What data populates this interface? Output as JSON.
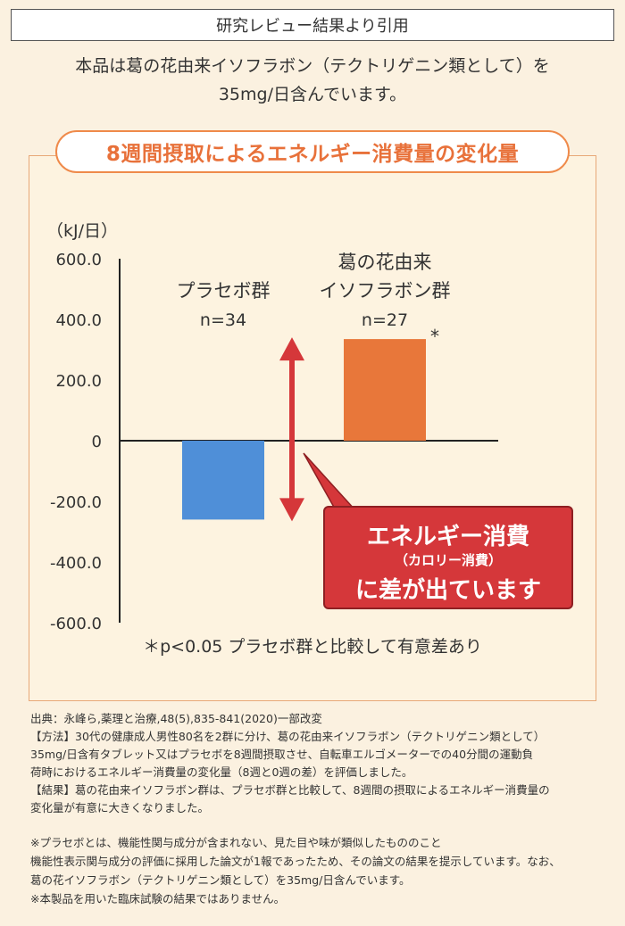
{
  "header": {
    "title": "研究レビュー結果より引用"
  },
  "intro": {
    "line1": "本品は葛の花由来イソフラボン（テクトリゲニン類として）を",
    "line2": "35mg/日含んでいます。"
  },
  "panel_title": "8週間摂取によるエネルギー消費量の変化量",
  "chart_data": {
    "type": "bar",
    "ylabel": "（kJ/日）",
    "ylim": [
      -600,
      600
    ],
    "yticks": [
      600,
      400,
      200,
      0,
      -200,
      -400,
      -600
    ],
    "ytick_labels": [
      "600.0",
      "400.0",
      "200.0",
      "0",
      "-200.0",
      "-400.0",
      "-600.0"
    ],
    "categories": [
      "プラセボ群",
      "葛の花由来イソフラボン群"
    ],
    "category_labels": [
      {
        "lines": [
          "プラセボ群"
        ],
        "n": "n=34"
      },
      {
        "lines": [
          "葛の花由来",
          "イソフラボン群"
        ],
        "n": "n=27"
      }
    ],
    "values": [
      -260,
      335
    ],
    "colors": [
      "#4f8fd8",
      "#e8773a"
    ],
    "significance_marker": "*",
    "arrow_color": "#d5373a"
  },
  "callout": {
    "line1": "エネルギー消費",
    "line2": "（カロリー消費）",
    "line3": "に差が出ています"
  },
  "footnote": "＊p<0.05 プラセボ群と比較して有意差あり",
  "refs": {
    "source": "出典：永峰ら,薬理と治療,48(5),835-841(2020)一部改変",
    "method1": "【方法】30代の健康成人男性80名を2群に分け、葛の花由来イソフラボン（テクトリゲニン類として）",
    "method2": "35mg/日含有タブレット又はプラセボを8週間摂取させ、自転車エルゴメーターでの40分間の運動負",
    "method3": "荷時におけるエネルギー消費量の変化量（8週と0週の差）を評価しました。",
    "result1": "【結果】葛の花由来イソフラボン群は、プラセボ群と比較して、8週間の摂取によるエネルギー消費量の",
    "result2": "変化量が有意に大きくなりました。"
  },
  "notes": {
    "n1": "※プラセボとは、機能性関与成分が含まれない、見た目や味が類似したもののこと",
    "n2": "機能性表示関与成分の評価に採用した論文が1報であったため、その論文の結果を提示しています。なお、",
    "n3": "葛の花イソフラボン（テクトリゲニン類として）を35mg/日含んでいます。",
    "n4": "※本製品を用いた臨床試験の結果ではありません。"
  }
}
